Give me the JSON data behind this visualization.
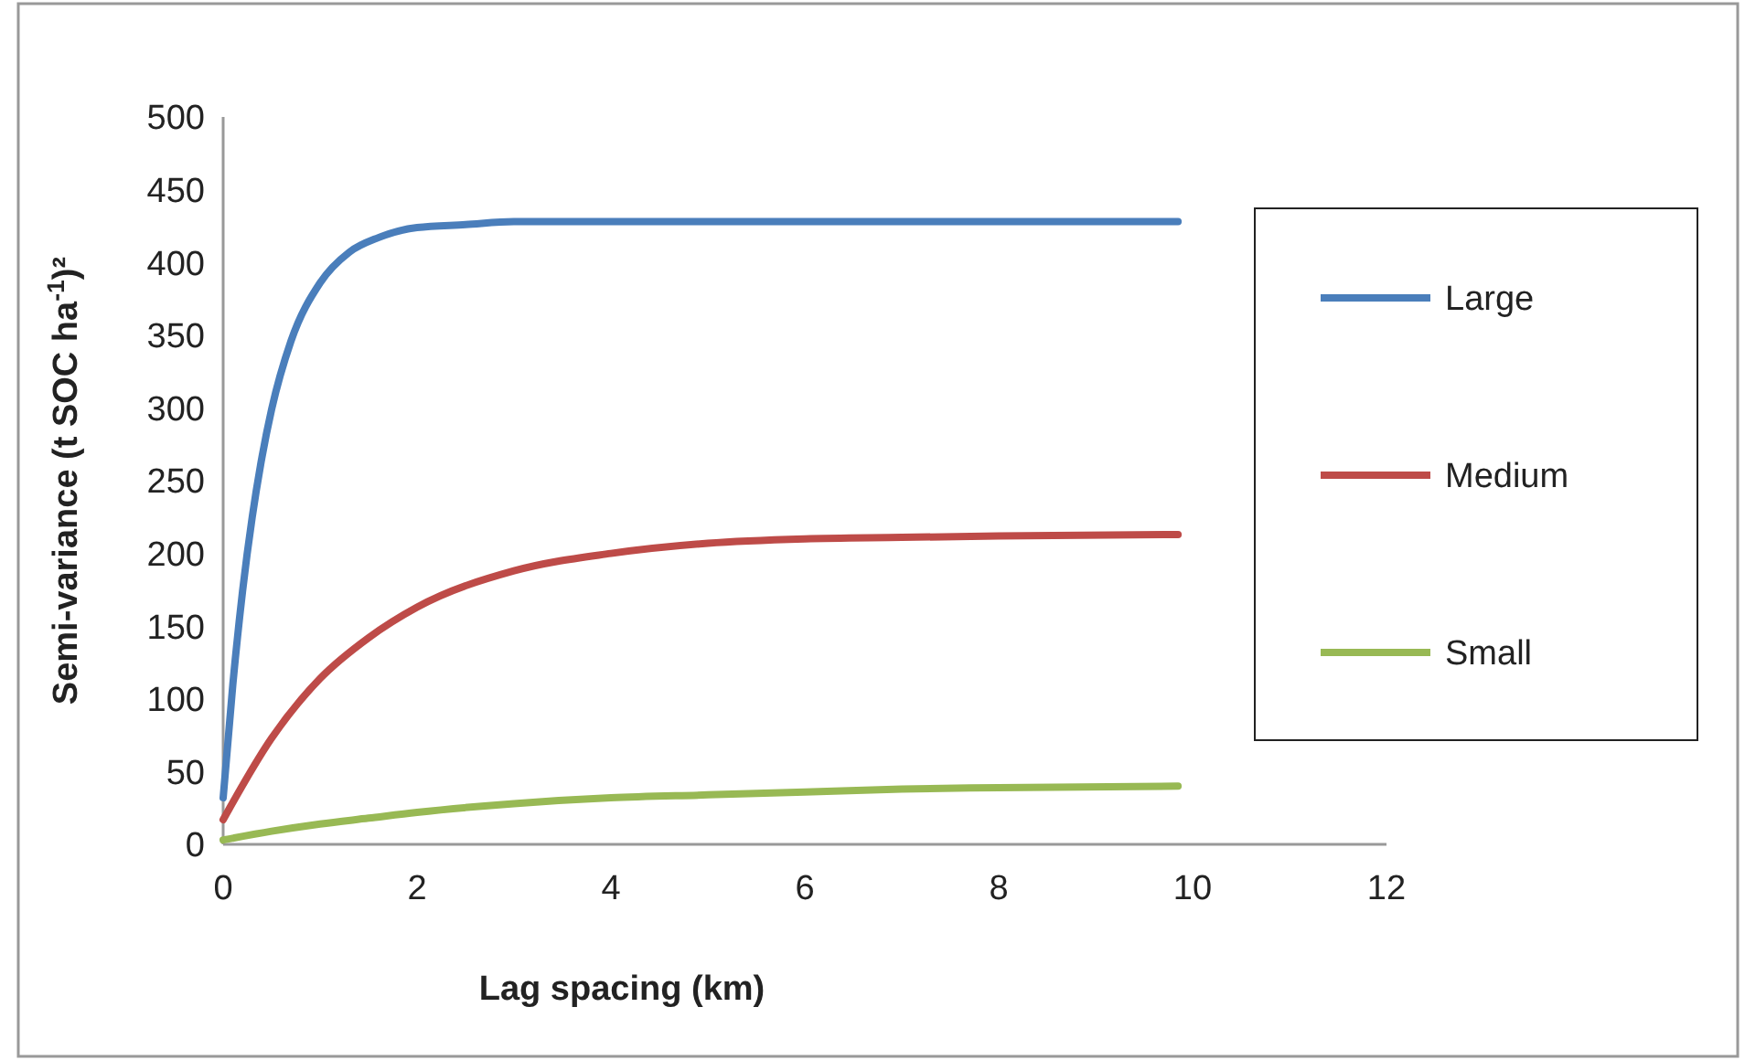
{
  "chart_data": {
    "type": "line",
    "xlabel": "Lag spacing (km)",
    "ylabel": "Semi-variance (t SOC ha$^{-1}$)²",
    "xlim": [
      0,
      12
    ],
    "xticks": [
      0,
      2,
      4,
      6,
      8,
      10,
      12
    ],
    "ylim": [
      0,
      500
    ],
    "yticks": [
      0,
      50,
      100,
      150,
      200,
      250,
      300,
      350,
      400,
      450,
      500
    ],
    "grid": false,
    "legend": "right",
    "marker": "none",
    "line_style": "solid",
    "series": [
      {
        "name": "Large",
        "color": "#4a7ebb",
        "x": [
          0,
          0.1,
          0.2,
          0.3,
          0.4,
          0.5,
          0.7,
          1,
          1.3,
          1.6,
          2,
          2.5,
          3,
          4,
          6,
          8,
          9.85
        ],
        "values": [
          32,
          110,
          174,
          225,
          266,
          299,
          346,
          386,
          407,
          417,
          424,
          426,
          428,
          428,
          428,
          428,
          428
        ]
      },
      {
        "name": "Medium",
        "color": "#be4b48",
        "x": [
          0,
          0.5,
          1,
          1.5,
          2,
          3,
          4,
          5,
          6,
          7,
          8,
          9.85
        ],
        "values": [
          17,
          73,
          114,
          142,
          163,
          188,
          200,
          207,
          210,
          211,
          212,
          213
        ]
      },
      {
        "name": "Small",
        "color": "#98b954",
        "x": [
          0,
          0.5,
          1,
          1.5,
          2,
          3,
          4,
          5,
          6,
          7,
          8,
          9.85
        ],
        "values": [
          3,
          9,
          14,
          18,
          22,
          28,
          32,
          34,
          36,
          38,
          39,
          40
        ]
      }
    ]
  }
}
